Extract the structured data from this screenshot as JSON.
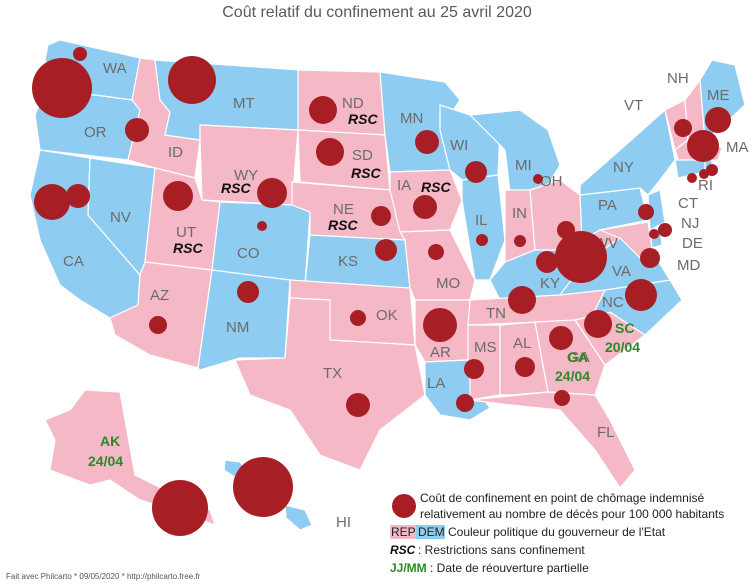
{
  "title": "Coût relatif du confinement au 25 avril 2020",
  "colors": {
    "rep": "#f4b8c6",
    "dem": "#8ecdf1",
    "border": "#ffffff",
    "bubble": "#a71f24",
    "reopen": "#2a8a2a"
  },
  "states": [
    {
      "code": "WA",
      "party": "dem"
    },
    {
      "code": "OR",
      "party": "dem"
    },
    {
      "code": "CA",
      "party": "dem"
    },
    {
      "code": "NV",
      "party": "dem"
    },
    {
      "code": "ID",
      "party": "rep"
    },
    {
      "code": "MT",
      "party": "dem"
    },
    {
      "code": "WY",
      "party": "rep"
    },
    {
      "code": "UT",
      "party": "rep"
    },
    {
      "code": "AZ",
      "party": "rep"
    },
    {
      "code": "CO",
      "party": "dem"
    },
    {
      "code": "NM",
      "party": "dem"
    },
    {
      "code": "ND",
      "party": "rep"
    },
    {
      "code": "SD",
      "party": "rep"
    },
    {
      "code": "NE",
      "party": "rep"
    },
    {
      "code": "KS",
      "party": "dem"
    },
    {
      "code": "OK",
      "party": "rep"
    },
    {
      "code": "TX",
      "party": "rep"
    },
    {
      "code": "MN",
      "party": "dem"
    },
    {
      "code": "IA",
      "party": "rep"
    },
    {
      "code": "MO",
      "party": "rep"
    },
    {
      "code": "AR",
      "party": "rep"
    },
    {
      "code": "LA",
      "party": "dem"
    },
    {
      "code": "WI",
      "party": "dem"
    },
    {
      "code": "IL",
      "party": "dem"
    },
    {
      "code": "MI",
      "party": "dem"
    },
    {
      "code": "IN",
      "party": "rep"
    },
    {
      "code": "OH",
      "party": "rep"
    },
    {
      "code": "KY",
      "party": "dem"
    },
    {
      "code": "TN",
      "party": "rep"
    },
    {
      "code": "MS",
      "party": "rep"
    },
    {
      "code": "AL",
      "party": "rep"
    },
    {
      "code": "GA",
      "party": "rep"
    },
    {
      "code": "FL",
      "party": "rep"
    },
    {
      "code": "SC",
      "party": "rep"
    },
    {
      "code": "NC",
      "party": "dem"
    },
    {
      "code": "VA",
      "party": "dem"
    },
    {
      "code": "WV",
      "party": "rep"
    },
    {
      "code": "PA",
      "party": "dem"
    },
    {
      "code": "NY",
      "party": "dem"
    },
    {
      "code": "VT",
      "party": "rep"
    },
    {
      "code": "NH",
      "party": "rep"
    },
    {
      "code": "ME",
      "party": "dem"
    },
    {
      "code": "MA",
      "party": "rep"
    },
    {
      "code": "RI",
      "party": "dem"
    },
    {
      "code": "CT",
      "party": "dem"
    },
    {
      "code": "NJ",
      "party": "dem"
    },
    {
      "code": "DE",
      "party": "dem"
    },
    {
      "code": "MD",
      "party": "rep"
    },
    {
      "code": "AK",
      "party": "rep"
    },
    {
      "code": "HI",
      "party": "dem"
    }
  ],
  "rsc_label": "RSC",
  "rsc_states": [
    "ND",
    "SD",
    "WY",
    "IA",
    "NE",
    "UT"
  ],
  "reopenings": [
    {
      "state": "AK",
      "date": "24/04"
    },
    {
      "state": "GA",
      "date": "24/04"
    },
    {
      "state": "SC",
      "date": "20/04"
    }
  ],
  "legend": {
    "bubble_line1": "Coût de confinement en point de chômage indemnisé",
    "bubble_line2": "relativement au nombre de décès pour 100 000 habitants",
    "rep_box": "REP",
    "dem_box": "DEM",
    "party_text": "Couleur politique du gouverneur de l'Etat",
    "rsc_key": "RSC",
    "rsc_text": " : Restrictions sans confinement",
    "date_key": "JJ/MM",
    "date_text": " : Date de réouverture partielle"
  },
  "credit": "Fait avec Philcarto * 09/05/2020 * http://philcarto.free.fr"
}
